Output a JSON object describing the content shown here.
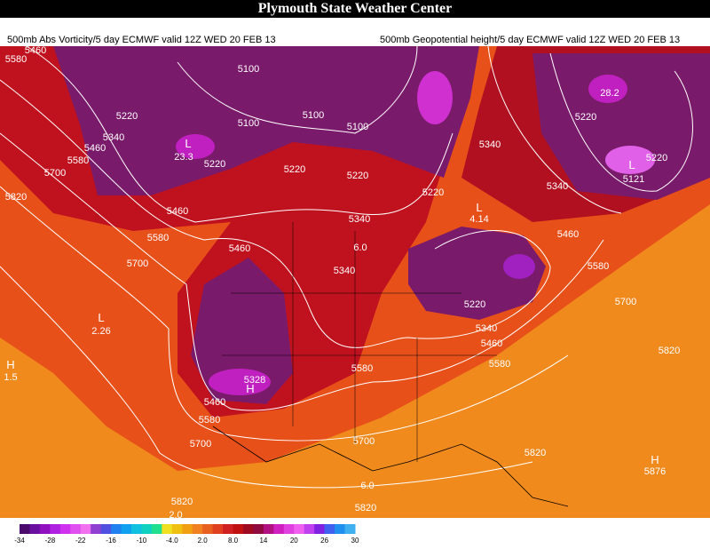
{
  "header": {
    "title": "Plymouth State Weather Center"
  },
  "subtitles": {
    "left": "500mb Abs Vorticity/5 day ECMWF valid 12Z WED 20 FEB 13",
    "right": "500mb Geopotential height/5 day ECMWF valid 12Z WED 20 FEB 13"
  },
  "contour_labels": [
    "5460",
    "5580",
    "5100",
    "5220",
    "5340",
    "5460",
    "5580",
    "5700",
    "5820",
    "5100",
    "5100",
    "5100",
    "5220",
    "5220",
    "5220",
    "5340",
    "5220",
    "5220",
    "5121",
    "5220",
    "5340",
    "5460",
    "5580",
    "5700",
    "5460",
    "5340",
    "5220",
    "5340",
    "5460",
    "5580",
    "5580",
    "5700",
    "5580",
    "5460",
    "5340",
    "5820",
    "5328",
    "5460",
    "5580",
    "5700",
    "5700",
    "5820",
    "5820",
    "5820",
    "5876",
    "2.26",
    "1.5",
    "28.2",
    "23.3",
    "2.0",
    "6.0",
    "6.0",
    "4.14"
  ],
  "pressure_marks": [
    "L",
    "L",
    "L",
    "H",
    "H",
    "L",
    "H"
  ],
  "colorbar": {
    "ticks": [
      "-34",
      "-28",
      "-22",
      "-16",
      "-10",
      "-4.0",
      "2.0",
      "8.0",
      "14",
      "20",
      "26",
      "30"
    ]
  }
}
